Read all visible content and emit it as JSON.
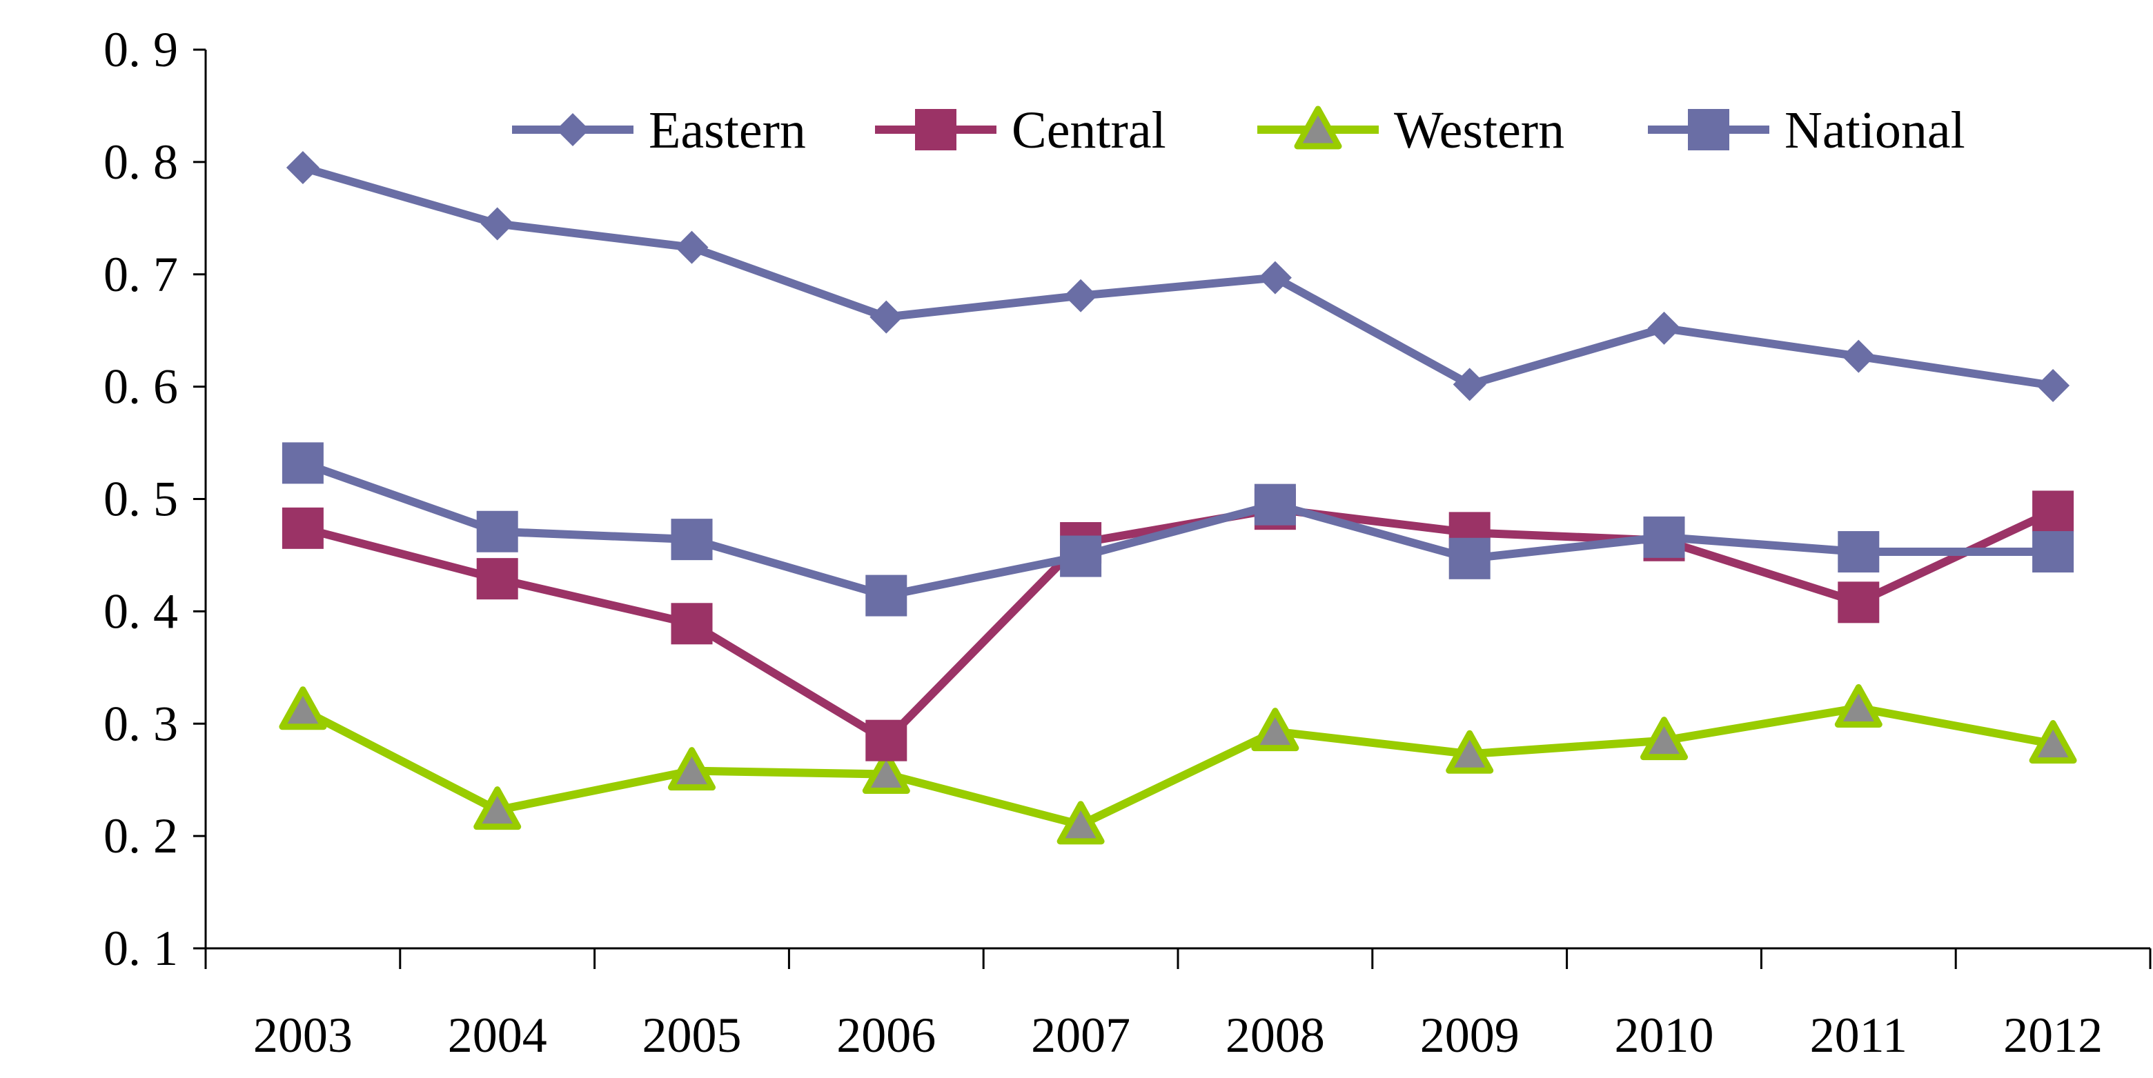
{
  "chart_data": {
    "type": "line",
    "title": "",
    "xlabel": "",
    "ylabel": "",
    "categories": [
      "2003",
      "2004",
      "2005",
      "2006",
      "2007",
      "2008",
      "2009",
      "2010",
      "2011",
      "2012"
    ],
    "ylim": [
      0.1,
      0.9
    ],
    "yticks": [
      "0. 1",
      "0. 2",
      "0. 3",
      "0. 4",
      "0. 5",
      "0. 6",
      "0. 7",
      "0. 8",
      "0. 9"
    ],
    "yticks_values": [
      0.1,
      0.2,
      0.3,
      0.4,
      0.5,
      0.6,
      0.7,
      0.8,
      0.9
    ],
    "grid": false,
    "legend_position": "top",
    "series": [
      {
        "name": "Eastern",
        "marker": "diamond",
        "color": "#6A6EA5",
        "values": [
          0.795,
          0.745,
          0.724,
          0.662,
          0.681,
          0.697,
          0.602,
          0.652,
          0.627,
          0.601
        ]
      },
      {
        "name": "Central",
        "marker": "square",
        "color": "#9B3366",
        "values": [
          0.474,
          0.429,
          0.389,
          0.285,
          0.461,
          0.491,
          0.47,
          0.463,
          0.408,
          0.489
        ]
      },
      {
        "name": "Western",
        "marker": "triangle",
        "color": "#99CC00",
        "marker_fill": "#8C8C8C",
        "values": [
          0.312,
          0.223,
          0.258,
          0.255,
          0.21,
          0.293,
          0.273,
          0.285,
          0.314,
          0.282
        ]
      },
      {
        "name": "National",
        "marker": "square",
        "color": "#6A6EA5",
        "values": [
          0.532,
          0.471,
          0.464,
          0.414,
          0.449,
          0.495,
          0.447,
          0.466,
          0.453,
          0.453
        ]
      }
    ]
  }
}
